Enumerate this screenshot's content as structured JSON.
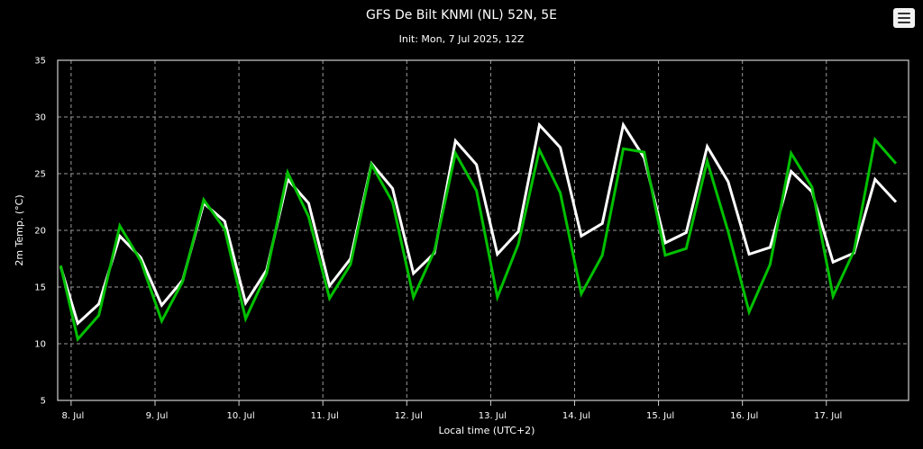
{
  "chart_data": {
    "type": "line",
    "title": "GFS De Bilt KNMI (NL) 52N, 5E",
    "subtitle": "Init: Mon, 7 Jul 2025, 12Z",
    "xlabel": "Local time (UTC+2)",
    "ylabel": "2m Temp. (°C)",
    "ylim": [
      5,
      35
    ],
    "y_ticks": [
      5,
      10,
      15,
      20,
      25,
      30,
      35
    ],
    "x_unit": "days from 8 Jul 00:00 local",
    "xlim": [
      -0.16,
      9.98
    ],
    "x_ticks": [
      {
        "x": 0,
        "label": "8. Jul"
      },
      {
        "x": 1,
        "label": "9. Jul"
      },
      {
        "x": 2,
        "label": "10. Jul"
      },
      {
        "x": 3,
        "label": "11. Jul"
      },
      {
        "x": 4,
        "label": "12. Jul"
      },
      {
        "x": 5,
        "label": "13. Jul"
      },
      {
        "x": 6,
        "label": "14. Jul"
      },
      {
        "x": 7,
        "label": "15. Jul"
      },
      {
        "x": 8,
        "label": "16. Jul"
      },
      {
        "x": 9,
        "label": "17. Jul"
      }
    ],
    "grid": true,
    "legend": "none",
    "series": [
      {
        "color": "#ffffff",
        "points": [
          [
            -0.125,
            16.8
          ],
          [
            0.08,
            11.8
          ],
          [
            0.33,
            13.5
          ],
          [
            0.58,
            19.5
          ],
          [
            0.83,
            17.6
          ],
          [
            1.08,
            13.4
          ],
          [
            1.33,
            15.6
          ],
          [
            1.58,
            22.4
          ],
          [
            1.83,
            20.8
          ],
          [
            2.08,
            13.6
          ],
          [
            2.33,
            16.5
          ],
          [
            2.58,
            24.5
          ],
          [
            2.83,
            22.4
          ],
          [
            3.08,
            15.1
          ],
          [
            3.33,
            17.5
          ],
          [
            3.58,
            25.9
          ],
          [
            3.83,
            23.7
          ],
          [
            4.08,
            16.2
          ],
          [
            4.33,
            18.0
          ],
          [
            4.58,
            27.9
          ],
          [
            4.83,
            25.8
          ],
          [
            5.08,
            17.9
          ],
          [
            5.33,
            19.9
          ],
          [
            5.58,
            29.3
          ],
          [
            5.83,
            27.3
          ],
          [
            6.08,
            19.5
          ],
          [
            6.33,
            20.6
          ],
          [
            6.58,
            29.3
          ],
          [
            6.83,
            26.4
          ],
          [
            7.08,
            18.9
          ],
          [
            7.33,
            19.8
          ],
          [
            7.58,
            27.4
          ],
          [
            7.83,
            24.3
          ],
          [
            8.08,
            17.9
          ],
          [
            8.33,
            18.5
          ],
          [
            8.58,
            25.2
          ],
          [
            8.83,
            23.4
          ],
          [
            9.08,
            17.2
          ],
          [
            9.33,
            18.0
          ],
          [
            9.58,
            24.5
          ],
          [
            9.83,
            22.5
          ]
        ]
      },
      {
        "color": "#00c000",
        "points": [
          [
            -0.125,
            16.9
          ],
          [
            0.08,
            10.4
          ],
          [
            0.33,
            12.5
          ],
          [
            0.58,
            20.4
          ],
          [
            0.83,
            17.3
          ],
          [
            1.08,
            12.0
          ],
          [
            1.33,
            15.5
          ],
          [
            1.58,
            22.7
          ],
          [
            1.83,
            20.1
          ],
          [
            2.08,
            12.2
          ],
          [
            2.33,
            16.2
          ],
          [
            2.58,
            25.1
          ],
          [
            2.83,
            21.2
          ],
          [
            3.08,
            14.0
          ],
          [
            3.33,
            17.0
          ],
          [
            3.58,
            25.8
          ],
          [
            3.83,
            22.5
          ],
          [
            4.08,
            14.1
          ],
          [
            4.33,
            18.2
          ],
          [
            4.58,
            26.8
          ],
          [
            4.83,
            23.5
          ],
          [
            5.08,
            14.1
          ],
          [
            5.33,
            18.8
          ],
          [
            5.58,
            27.1
          ],
          [
            5.83,
            23.3
          ],
          [
            6.08,
            14.4
          ],
          [
            6.33,
            17.8
          ],
          [
            6.58,
            27.2
          ],
          [
            6.83,
            26.9
          ],
          [
            7.08,
            17.8
          ],
          [
            7.33,
            18.4
          ],
          [
            7.58,
            26.1
          ],
          [
            7.83,
            19.9
          ],
          [
            8.08,
            12.8
          ],
          [
            8.33,
            17.0
          ],
          [
            8.58,
            26.8
          ],
          [
            8.83,
            23.8
          ],
          [
            9.08,
            14.2
          ],
          [
            9.33,
            18.2
          ],
          [
            9.58,
            28.0
          ],
          [
            9.83,
            25.9
          ]
        ]
      }
    ]
  },
  "menu": {
    "icon": "hamburger-menu-icon"
  }
}
